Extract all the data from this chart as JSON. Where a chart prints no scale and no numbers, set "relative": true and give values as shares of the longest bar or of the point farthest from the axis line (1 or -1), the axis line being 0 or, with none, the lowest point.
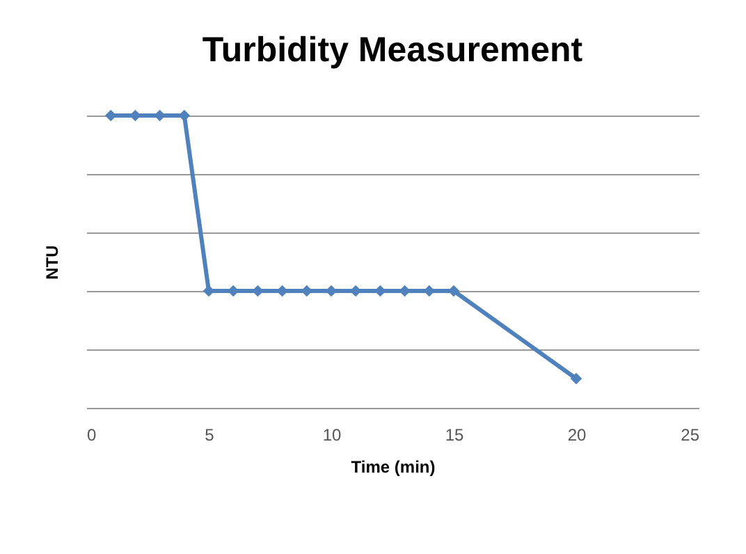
{
  "chart_data": {
    "type": "line",
    "title": "Turbidity Measurement",
    "xlabel": "Time (min)",
    "ylabel": "NTU",
    "relative": true,
    "x": [
      1,
      2,
      3,
      4,
      5,
      6,
      7,
      8,
      9,
      10,
      11,
      12,
      13,
      14,
      15,
      20
    ],
    "series": [
      {
        "color": "#4f81bd",
        "values": [
          1,
          1,
          1,
          1,
          0.4,
          0.4,
          0.4,
          0.4,
          0.4,
          0.4,
          0.4,
          0.4,
          0.4,
          0.4,
          0.4,
          0.1
        ]
      }
    ],
    "xlim": [
      0,
      25
    ],
    "xticks": [
      0,
      5,
      10,
      15,
      20,
      25
    ],
    "grid": "y",
    "marker": "diamond",
    "legend": false
  }
}
